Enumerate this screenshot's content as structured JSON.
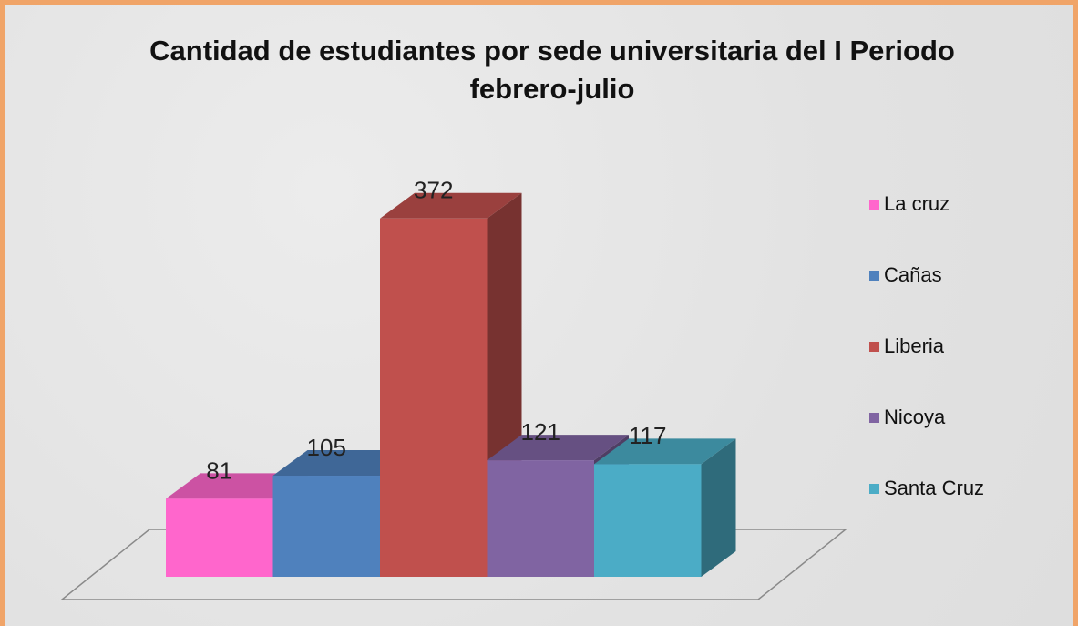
{
  "chart_data": {
    "type": "bar3d",
    "title": "Cantidad de estudiantes por sede universitaria del I Periodo febrero-julio",
    "series": [
      {
        "name": "La cruz",
        "color": "#ff66cc",
        "values": [
          81
        ]
      },
      {
        "name": "Cañas",
        "color": "#4f81bd",
        "values": [
          105
        ]
      },
      {
        "name": "Liberia",
        "color": "#c0504d",
        "values": [
          372
        ]
      },
      {
        "name": "Nicoya",
        "color": "#8064a2",
        "values": [
          121
        ]
      },
      {
        "name": "Santa Cruz",
        "color": "#4bacc6",
        "values": [
          117
        ]
      }
    ],
    "legend": "right"
  }
}
